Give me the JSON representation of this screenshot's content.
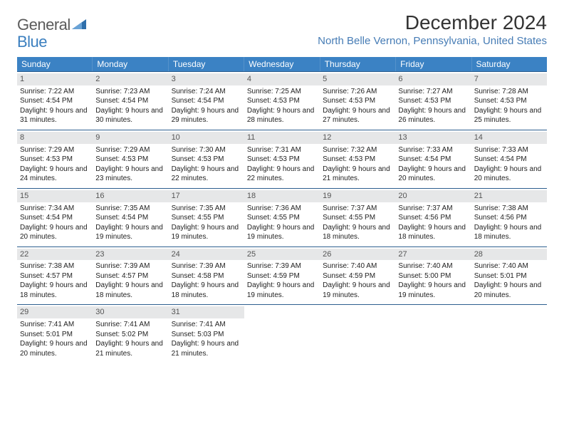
{
  "header": {
    "logo_text_1": "General",
    "logo_text_2": "Blue",
    "month_title": "December 2024",
    "location": "North Belle Vernon, Pennsylvania, United States"
  },
  "colors": {
    "header_bg": "#3b82c4",
    "header_text": "#ffffff",
    "daynum_bg": "#e6e7e8",
    "border": "#2d5f8f",
    "title": "#333333",
    "location": "#467cb5",
    "logo_gray": "#5b5b5b",
    "logo_blue": "#3b7fbf"
  },
  "day_names": [
    "Sunday",
    "Monday",
    "Tuesday",
    "Wednesday",
    "Thursday",
    "Friday",
    "Saturday"
  ],
  "weeks": [
    [
      {
        "n": "1",
        "sr": "Sunrise: 7:22 AM",
        "ss": "Sunset: 4:54 PM",
        "dl": "Daylight: 9 hours and 31 minutes."
      },
      {
        "n": "2",
        "sr": "Sunrise: 7:23 AM",
        "ss": "Sunset: 4:54 PM",
        "dl": "Daylight: 9 hours and 30 minutes."
      },
      {
        "n": "3",
        "sr": "Sunrise: 7:24 AM",
        "ss": "Sunset: 4:54 PM",
        "dl": "Daylight: 9 hours and 29 minutes."
      },
      {
        "n": "4",
        "sr": "Sunrise: 7:25 AM",
        "ss": "Sunset: 4:53 PM",
        "dl": "Daylight: 9 hours and 28 minutes."
      },
      {
        "n": "5",
        "sr": "Sunrise: 7:26 AM",
        "ss": "Sunset: 4:53 PM",
        "dl": "Daylight: 9 hours and 27 minutes."
      },
      {
        "n": "6",
        "sr": "Sunrise: 7:27 AM",
        "ss": "Sunset: 4:53 PM",
        "dl": "Daylight: 9 hours and 26 minutes."
      },
      {
        "n": "7",
        "sr": "Sunrise: 7:28 AM",
        "ss": "Sunset: 4:53 PM",
        "dl": "Daylight: 9 hours and 25 minutes."
      }
    ],
    [
      {
        "n": "8",
        "sr": "Sunrise: 7:29 AM",
        "ss": "Sunset: 4:53 PM",
        "dl": "Daylight: 9 hours and 24 minutes."
      },
      {
        "n": "9",
        "sr": "Sunrise: 7:29 AM",
        "ss": "Sunset: 4:53 PM",
        "dl": "Daylight: 9 hours and 23 minutes."
      },
      {
        "n": "10",
        "sr": "Sunrise: 7:30 AM",
        "ss": "Sunset: 4:53 PM",
        "dl": "Daylight: 9 hours and 22 minutes."
      },
      {
        "n": "11",
        "sr": "Sunrise: 7:31 AM",
        "ss": "Sunset: 4:53 PM",
        "dl": "Daylight: 9 hours and 22 minutes."
      },
      {
        "n": "12",
        "sr": "Sunrise: 7:32 AM",
        "ss": "Sunset: 4:53 PM",
        "dl": "Daylight: 9 hours and 21 minutes."
      },
      {
        "n": "13",
        "sr": "Sunrise: 7:33 AM",
        "ss": "Sunset: 4:54 PM",
        "dl": "Daylight: 9 hours and 20 minutes."
      },
      {
        "n": "14",
        "sr": "Sunrise: 7:33 AM",
        "ss": "Sunset: 4:54 PM",
        "dl": "Daylight: 9 hours and 20 minutes."
      }
    ],
    [
      {
        "n": "15",
        "sr": "Sunrise: 7:34 AM",
        "ss": "Sunset: 4:54 PM",
        "dl": "Daylight: 9 hours and 20 minutes."
      },
      {
        "n": "16",
        "sr": "Sunrise: 7:35 AM",
        "ss": "Sunset: 4:54 PM",
        "dl": "Daylight: 9 hours and 19 minutes."
      },
      {
        "n": "17",
        "sr": "Sunrise: 7:35 AM",
        "ss": "Sunset: 4:55 PM",
        "dl": "Daylight: 9 hours and 19 minutes."
      },
      {
        "n": "18",
        "sr": "Sunrise: 7:36 AM",
        "ss": "Sunset: 4:55 PM",
        "dl": "Daylight: 9 hours and 19 minutes."
      },
      {
        "n": "19",
        "sr": "Sunrise: 7:37 AM",
        "ss": "Sunset: 4:55 PM",
        "dl": "Daylight: 9 hours and 18 minutes."
      },
      {
        "n": "20",
        "sr": "Sunrise: 7:37 AM",
        "ss": "Sunset: 4:56 PM",
        "dl": "Daylight: 9 hours and 18 minutes."
      },
      {
        "n": "21",
        "sr": "Sunrise: 7:38 AM",
        "ss": "Sunset: 4:56 PM",
        "dl": "Daylight: 9 hours and 18 minutes."
      }
    ],
    [
      {
        "n": "22",
        "sr": "Sunrise: 7:38 AM",
        "ss": "Sunset: 4:57 PM",
        "dl": "Daylight: 9 hours and 18 minutes."
      },
      {
        "n": "23",
        "sr": "Sunrise: 7:39 AM",
        "ss": "Sunset: 4:57 PM",
        "dl": "Daylight: 9 hours and 18 minutes."
      },
      {
        "n": "24",
        "sr": "Sunrise: 7:39 AM",
        "ss": "Sunset: 4:58 PM",
        "dl": "Daylight: 9 hours and 18 minutes."
      },
      {
        "n": "25",
        "sr": "Sunrise: 7:39 AM",
        "ss": "Sunset: 4:59 PM",
        "dl": "Daylight: 9 hours and 19 minutes."
      },
      {
        "n": "26",
        "sr": "Sunrise: 7:40 AM",
        "ss": "Sunset: 4:59 PM",
        "dl": "Daylight: 9 hours and 19 minutes."
      },
      {
        "n": "27",
        "sr": "Sunrise: 7:40 AM",
        "ss": "Sunset: 5:00 PM",
        "dl": "Daylight: 9 hours and 19 minutes."
      },
      {
        "n": "28",
        "sr": "Sunrise: 7:40 AM",
        "ss": "Sunset: 5:01 PM",
        "dl": "Daylight: 9 hours and 20 minutes."
      }
    ],
    [
      {
        "n": "29",
        "sr": "Sunrise: 7:41 AM",
        "ss": "Sunset: 5:01 PM",
        "dl": "Daylight: 9 hours and 20 minutes."
      },
      {
        "n": "30",
        "sr": "Sunrise: 7:41 AM",
        "ss": "Sunset: 5:02 PM",
        "dl": "Daylight: 9 hours and 21 minutes."
      },
      {
        "n": "31",
        "sr": "Sunrise: 7:41 AM",
        "ss": "Sunset: 5:03 PM",
        "dl": "Daylight: 9 hours and 21 minutes."
      },
      {
        "n": "",
        "sr": "",
        "ss": "",
        "dl": ""
      },
      {
        "n": "",
        "sr": "",
        "ss": "",
        "dl": ""
      },
      {
        "n": "",
        "sr": "",
        "ss": "",
        "dl": ""
      },
      {
        "n": "",
        "sr": "",
        "ss": "",
        "dl": ""
      }
    ]
  ]
}
